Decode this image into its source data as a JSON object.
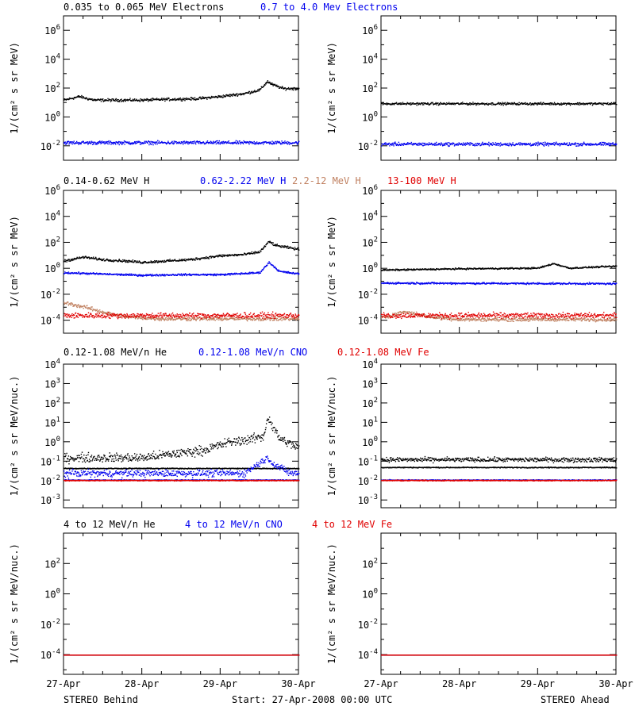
{
  "footer": {
    "left": "STEREO Behind",
    "center": "Start: 27-Apr-2008 00:00 UTC",
    "right": "STEREO Ahead"
  },
  "x_tick_labels": [
    "27-Apr",
    "28-Apr",
    "29-Apr",
    "30-Apr"
  ],
  "chart_data": [
    {
      "id": "electrons-behind",
      "type": "scatter",
      "ylabel": "1/(cm² s sr MeV)",
      "yscale": "log",
      "ylim_exp": [
        -3,
        7
      ],
      "y_tick_exponents": [
        -2,
        0,
        2,
        4,
        6
      ],
      "xlim_days": [
        0,
        3
      ],
      "title_parts": [
        {
          "text": "0.035 to 0.065 MeV Electrons",
          "color": "#000000"
        },
        {
          "text": "0.7 to 4.0 Mev Electrons",
          "color": "#0000ee"
        }
      ],
      "series": [
        {
          "name": "0.035 to 0.065 MeV Electrons",
          "color": "#000000",
          "keypoints": [
            [
              0,
              1.2
            ],
            [
              0.2,
              1.45
            ],
            [
              0.3,
              1.3
            ],
            [
              0.4,
              1.2
            ],
            [
              1.0,
              1.2
            ],
            [
              1.3,
              1.25
            ],
            [
              1.7,
              1.3
            ],
            [
              2.0,
              1.45
            ],
            [
              2.3,
              1.65
            ],
            [
              2.5,
              1.9
            ],
            [
              2.6,
              2.5
            ],
            [
              2.65,
              2.3
            ],
            [
              2.8,
              2.0
            ],
            [
              3.0,
              2.0
            ]
          ],
          "jitter": 0.08
        },
        {
          "name": "0.7 to 4.0 Mev Electrons",
          "color": "#0000ee",
          "keypoints": [
            [
              0,
              -1.75
            ],
            [
              3.0,
              -1.75
            ]
          ],
          "jitter": 0.1
        }
      ]
    },
    {
      "id": "electrons-ahead",
      "type": "scatter",
      "ylabel": "1/(cm² s sr MeV)",
      "yscale": "log",
      "ylim_exp": [
        -3,
        7
      ],
      "y_tick_exponents": [
        -2,
        0,
        2,
        4,
        6
      ],
      "xlim_days": [
        0,
        3
      ],
      "title_parts": [],
      "series": [
        {
          "name": "0.035 to 0.065 MeV Electrons",
          "color": "#000000",
          "keypoints": [
            [
              0,
              0.95
            ],
            [
              3.0,
              0.95
            ]
          ],
          "jitter": 0.07
        },
        {
          "name": "0.7 to 4.0 Mev Electrons",
          "color": "#0000ee",
          "keypoints": [
            [
              0,
              -1.85
            ],
            [
              3.0,
              -1.85
            ]
          ],
          "jitter": 0.1
        }
      ]
    },
    {
      "id": "protons-behind",
      "type": "scatter",
      "ylabel": "1/(cm² s sr MeV)",
      "yscale": "log",
      "ylim_exp": [
        -5,
        6
      ],
      "y_tick_exponents": [
        -4,
        -2,
        0,
        2,
        4,
        6
      ],
      "xlim_days": [
        0,
        3
      ],
      "title_parts": [
        {
          "text": "0.14-0.62 MeV H",
          "color": "#000000"
        },
        {
          "text": "0.62-2.22 MeV H",
          "color": "#0000ee"
        },
        {
          "text": "2.2-12 MeV H",
          "color": "#c08060"
        },
        {
          "text": "13-100 MeV H",
          "color": "#e00000"
        }
      ],
      "series": [
        {
          "name": "0.14-0.62 MeV H",
          "color": "#000000",
          "keypoints": [
            [
              0,
              0.6
            ],
            [
              0.25,
              0.9
            ],
            [
              0.5,
              0.7
            ],
            [
              0.8,
              0.6
            ],
            [
              1.0,
              0.5
            ],
            [
              1.3,
              0.6
            ],
            [
              1.6,
              0.7
            ],
            [
              2.0,
              1.0
            ],
            [
              2.3,
              1.1
            ],
            [
              2.5,
              1.3
            ],
            [
              2.62,
              2.1
            ],
            [
              2.7,
              1.8
            ],
            [
              3.0,
              1.5
            ]
          ],
          "jitter": 0.08
        },
        {
          "name": "0.62-2.22 MeV H",
          "color": "#0000ee",
          "keypoints": [
            [
              0,
              -0.3
            ],
            [
              0.5,
              -0.4
            ],
            [
              1.0,
              -0.5
            ],
            [
              1.5,
              -0.45
            ],
            [
              2.0,
              -0.45
            ],
            [
              2.5,
              -0.3
            ],
            [
              2.62,
              0.5
            ],
            [
              2.75,
              -0.2
            ],
            [
              3.0,
              -0.4
            ]
          ],
          "jitter": 0.06
        },
        {
          "name": "2.2-12 MeV H",
          "color": "#c08060",
          "keypoints": [
            [
              0,
              -2.6
            ],
            [
              0.3,
              -3.0
            ],
            [
              0.6,
              -3.5
            ],
            [
              0.8,
              -3.7
            ],
            [
              1.2,
              -3.85
            ],
            [
              3.0,
              -3.85
            ]
          ],
          "jitter": 0.12
        },
        {
          "name": "13-100 MeV H",
          "color": "#e00000",
          "keypoints": [
            [
              0,
              -3.6
            ],
            [
              3.0,
              -3.6
            ]
          ],
          "jitter": 0.18
        }
      ]
    },
    {
      "id": "protons-ahead",
      "type": "scatter",
      "ylabel": "1/(cm² s sr MeV)",
      "yscale": "log",
      "ylim_exp": [
        -5,
        6
      ],
      "y_tick_exponents": [
        -4,
        -2,
        0,
        2,
        4,
        6
      ],
      "xlim_days": [
        0,
        3
      ],
      "title_parts": [],
      "series": [
        {
          "name": "0.14-0.62 MeV H",
          "color": "#000000",
          "keypoints": [
            [
              0,
              -0.1
            ],
            [
              1.0,
              0.0
            ],
            [
              2.0,
              0.05
            ],
            [
              2.2,
              0.4
            ],
            [
              2.4,
              0.05
            ],
            [
              3.0,
              0.2
            ]
          ],
          "jitter": 0.05
        },
        {
          "name": "0.62-2.22 MeV H",
          "color": "#0000ee",
          "keypoints": [
            [
              0,
              -1.1
            ],
            [
              3.0,
              -1.15
            ]
          ],
          "jitter": 0.06
        },
        {
          "name": "2.2-12 MeV H",
          "color": "#c08060",
          "keypoints": [
            [
              0,
              -3.8
            ],
            [
              0.3,
              -3.3
            ],
            [
              0.6,
              -3.7
            ],
            [
              1.0,
              -3.9
            ],
            [
              3.0,
              -3.9
            ]
          ],
          "jitter": 0.12
        },
        {
          "name": "13-100 MeV H",
          "color": "#e00000",
          "keypoints": [
            [
              0,
              -3.6
            ],
            [
              3.0,
              -3.6
            ]
          ],
          "jitter": 0.18
        }
      ]
    },
    {
      "id": "heavy-low-behind",
      "type": "scatter",
      "ylabel": "1/(cm² s sr MeV/nuc.)",
      "yscale": "log",
      "ylim_exp": [
        -3.4,
        4
      ],
      "y_tick_exponents": [
        -3,
        -2,
        -1,
        0,
        1,
        2,
        3,
        4
      ],
      "xlim_days": [
        0,
        3
      ],
      "title_parts": [
        {
          "text": "0.12-1.08 MeV/n He",
          "color": "#000000"
        },
        {
          "text": "0.12-1.08 MeV/n CNO",
          "color": "#0000ee"
        },
        {
          "text": "0.12-1.08 MeV Fe",
          "color": "#e00000"
        }
      ],
      "series": [
        {
          "name": "0.12-1.08 MeV/n He",
          "color": "#000000",
          "keypoints": [
            [
              0,
              -0.8
            ],
            [
              1.0,
              -0.8
            ],
            [
              1.8,
              -0.4
            ],
            [
              2.1,
              0.0
            ],
            [
              2.3,
              0.1
            ],
            [
              2.55,
              0.3
            ],
            [
              2.6,
              1.3
            ],
            [
              2.75,
              0.2
            ],
            [
              3.0,
              -0.3
            ]
          ],
          "jitter": 0.2
        },
        {
          "name": "0.12-1.08 MeV/n He base",
          "color": "#000000",
          "keypoints": [
            [
              0,
              -1.35
            ],
            [
              3.0,
              -1.35
            ]
          ],
          "jitter": 0.02
        },
        {
          "name": "0.12-1.08 MeV/n CNO",
          "color": "#0000ee",
          "keypoints": [
            [
              0,
              -1.95
            ],
            [
              3.0,
              -1.95
            ]
          ],
          "jitter": 0.02
        },
        {
          "name": "0.12-1.08 MeV/n CNO event",
          "color": "#0000ee",
          "keypoints": [
            [
              2.3,
              -1.6
            ],
            [
              2.6,
              -0.8
            ],
            [
              2.7,
              -1.2
            ],
            [
              2.9,
              -1.6
            ]
          ],
          "jitter": 0.15
        },
        {
          "name": "0.12-1.08 MeV Fe",
          "color": "#e00000",
          "keypoints": [
            [
              0,
              -1.97
            ],
            [
              3.0,
              -1.97
            ]
          ],
          "jitter": 0.02
        }
      ]
    },
    {
      "id": "heavy-low-ahead",
      "type": "scatter",
      "ylabel": "1/(cm² s sr MeV/nuc.)",
      "yscale": "log",
      "ylim_exp": [
        -3.4,
        4
      ],
      "y_tick_exponents": [
        -3,
        -2,
        -1,
        0,
        1,
        2,
        3,
        4
      ],
      "xlim_days": [
        0,
        3
      ],
      "title_parts": [],
      "series": [
        {
          "name": "0.12-1.08 MeV/n He",
          "color": "#000000",
          "keypoints": [
            [
              0,
              -1.3
            ],
            [
              3.0,
              -1.3
            ]
          ],
          "jitter": 0.02
        },
        {
          "name": "0.12-1.08 MeV/n He sparse",
          "color": "#000000",
          "keypoints": [
            [
              0,
              -0.9
            ],
            [
              3.0,
              -0.9
            ]
          ],
          "jitter": 0.1
        },
        {
          "name": "0.12-1.08 MeV/n CNO",
          "color": "#0000ee",
          "keypoints": [
            [
              0,
              -1.95
            ],
            [
              3.0,
              -1.95
            ]
          ],
          "jitter": 0.02
        },
        {
          "name": "0.12-1.08 MeV Fe",
          "color": "#e00000",
          "keypoints": [
            [
              0,
              -1.97
            ],
            [
              3.0,
              -1.97
            ]
          ],
          "jitter": 0.02
        }
      ]
    },
    {
      "id": "heavy-high-behind",
      "type": "scatter",
      "ylabel": "1/(cm² s sr MeV/nuc.)",
      "yscale": "log",
      "ylim_exp": [
        -5.3,
        4
      ],
      "y_tick_exponents": [
        -4,
        -2,
        0,
        2
      ],
      "xlim_days": [
        0,
        3
      ],
      "title_parts": [
        {
          "text": "4 to 12 MeV/n He",
          "color": "#000000"
        },
        {
          "text": "4 to 12 MeV/n CNO",
          "color": "#0000ee"
        },
        {
          "text": "4 to 12 MeV Fe",
          "color": "#e00000"
        }
      ],
      "series": [
        {
          "name": "4 to 12 MeV/n He",
          "color": "#000000",
          "keypoints": [
            [
              0,
              -4.0
            ],
            [
              3.0,
              -4.0
            ]
          ],
          "jitter": 0.0
        },
        {
          "name": "4 to 12 MeV/n CNO",
          "color": "#0000ee",
          "keypoints": [
            [
              0,
              -4.0
            ],
            [
              3.0,
              -4.0
            ]
          ],
          "jitter": 0.0
        },
        {
          "name": "4 to 12 MeV Fe",
          "color": "#e00000",
          "keypoints": [
            [
              0,
              -4.0
            ],
            [
              3.0,
              -4.0
            ]
          ],
          "jitter": 0.0
        }
      ]
    },
    {
      "id": "heavy-high-ahead",
      "type": "scatter",
      "ylabel": "1/(cm² s sr MeV/nuc.)",
      "yscale": "log",
      "ylim_exp": [
        -5.3,
        4
      ],
      "y_tick_exponents": [
        -4,
        -2,
        0,
        2
      ],
      "xlim_days": [
        0,
        3
      ],
      "title_parts": [],
      "series": [
        {
          "name": "4 to 12 MeV/n He",
          "color": "#000000",
          "keypoints": [
            [
              0,
              -4.0
            ],
            [
              3.0,
              -4.0
            ]
          ],
          "jitter": 0.0
        },
        {
          "name": "4 to 12 MeV/n CNO",
          "color": "#0000ee",
          "keypoints": [
            [
              0,
              -4.0
            ],
            [
              3.0,
              -4.0
            ]
          ],
          "jitter": 0.0
        },
        {
          "name": "4 to 12 MeV Fe",
          "color": "#e00000",
          "keypoints": [
            [
              0,
              -4.0
            ],
            [
              3.0,
              -4.0
            ]
          ],
          "jitter": 0.0
        }
      ]
    }
  ]
}
